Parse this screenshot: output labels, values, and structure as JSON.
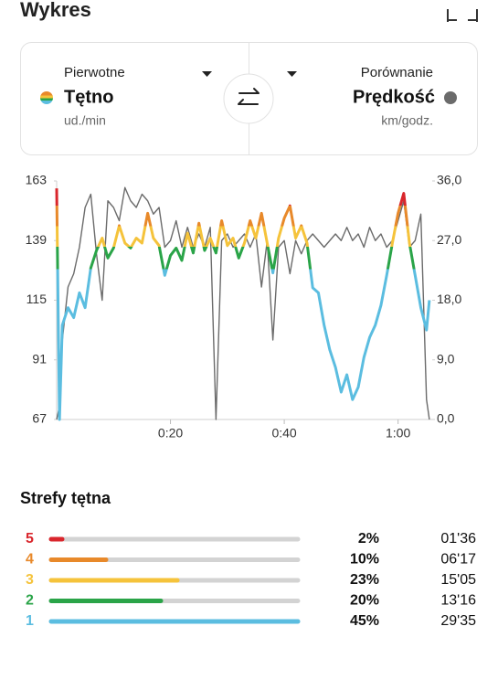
{
  "header": {
    "title": "Wykres"
  },
  "selector": {
    "primary": {
      "caption": "Pierwotne",
      "name": "Tętno",
      "unit": "ud./min"
    },
    "comparison": {
      "caption": "Porównanie",
      "name": "Prędkość",
      "unit": "km/godz.",
      "color": "#6b6b6b"
    }
  },
  "chart_data": {
    "type": "line",
    "x": [
      0,
      0.5,
      1,
      2,
      3,
      4,
      5,
      6,
      7,
      8,
      9,
      10,
      11,
      12,
      13,
      14,
      15,
      16,
      17,
      18,
      19,
      20,
      21,
      22,
      23,
      24,
      25,
      26,
      27,
      28,
      29,
      30,
      31,
      32,
      33,
      34,
      35,
      36,
      37,
      38,
      39,
      40,
      41,
      42,
      43,
      44,
      45,
      46,
      47,
      48,
      49,
      50,
      51,
      52,
      53,
      54,
      55,
      56,
      57,
      58,
      59,
      60,
      61,
      62,
      63,
      64,
      65,
      65.5
    ],
    "xlim": [
      0,
      66
    ],
    "xticks": [
      {
        "value": 20,
        "label": "0:20"
      },
      {
        "value": 40,
        "label": "0:40"
      },
      {
        "value": 60,
        "label": "1:00"
      }
    ],
    "ylim": [
      67,
      163
    ],
    "yticks": [
      67,
      91,
      115,
      139,
      163
    ],
    "y2lim": [
      0,
      36
    ],
    "y2ticks": [
      {
        "value": 0,
        "label": "0,0"
      },
      {
        "value": 9,
        "label": "9,0"
      },
      {
        "value": 18,
        "label": "18,0"
      },
      {
        "value": 27,
        "label": "27,0"
      },
      {
        "value": 36,
        "label": "36,0"
      }
    ],
    "series": [
      {
        "name": "Tętno",
        "values": [
          160,
          67,
          105,
          112,
          108,
          118,
          112,
          128,
          135,
          140,
          132,
          136,
          145,
          138,
          136,
          140,
          138,
          150,
          140,
          137,
          125,
          133,
          136,
          131,
          142,
          134,
          146,
          135,
          140,
          134,
          147,
          137,
          140,
          132,
          138,
          147,
          140,
          150,
          138,
          126,
          140,
          148,
          153,
          140,
          145,
          138,
          120,
          118,
          105,
          95,
          88,
          78,
          85,
          75,
          80,
          92,
          100,
          105,
          113,
          125,
          138,
          150,
          158,
          138,
          125,
          112,
          103,
          115
        ]
      },
      {
        "name": "Prędkość",
        "color": "#6b6b6b",
        "axis": "y2",
        "values": [
          0,
          2,
          12,
          20,
          22,
          26,
          32,
          34,
          25,
          18,
          33,
          32,
          30,
          35,
          33,
          32,
          34,
          33,
          31,
          32,
          26,
          27,
          30,
          26,
          29,
          26,
          28,
          26,
          29,
          0,
          27,
          28,
          26,
          27,
          28,
          26,
          28,
          20,
          27,
          12,
          26,
          27,
          22,
          27,
          25,
          27,
          28,
          27,
          26,
          27,
          28,
          27,
          29,
          27,
          28,
          26,
          29,
          27,
          28,
          26,
          27,
          30,
          33,
          26,
          27,
          31,
          3,
          0
        ]
      }
    ]
  },
  "zones": {
    "title": "Strefy tętna",
    "rows": [
      {
        "zone": "5",
        "percent": 2,
        "percent_label": "2%",
        "time": "01'36",
        "color": "#d9262c"
      },
      {
        "zone": "4",
        "percent": 10,
        "percent_label": "10%",
        "time": "06'17",
        "color": "#e8892a"
      },
      {
        "zone": "3",
        "percent": 23,
        "percent_label": "23%",
        "time": "15'05",
        "color": "#f5c33b"
      },
      {
        "zone": "2",
        "percent": 20,
        "percent_label": "20%",
        "time": "13'16",
        "color": "#2aa448"
      },
      {
        "zone": "1",
        "percent": 45,
        "percent_label": "45%",
        "time": "29'35",
        "color": "#5bbde0"
      }
    ]
  }
}
